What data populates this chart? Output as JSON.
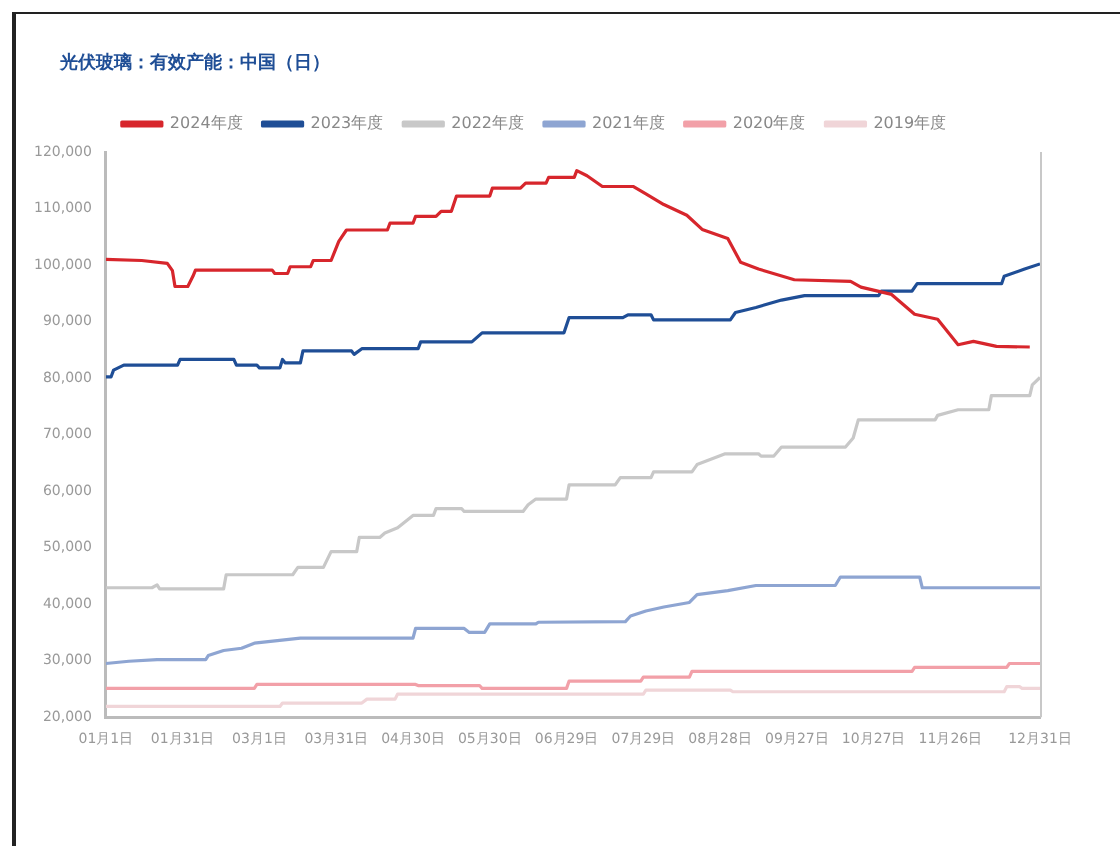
{
  "chart_data": {
    "type": "line",
    "title": "光伏玻璃：有效产能：中国（日）",
    "legend": "top",
    "xlim": [
      "--01-01",
      "--12-31"
    ],
    "xticks": [
      {
        "value": "--01-01",
        "label": "01月1日"
      },
      {
        "value": "--01-31",
        "label": "01月31日"
      },
      {
        "value": "--03-01",
        "label": "03月1日"
      },
      {
        "value": "--03-31",
        "label": "03月31日"
      },
      {
        "value": "--04-30",
        "label": "04月30日"
      },
      {
        "value": "--05-30",
        "label": "05月30日"
      },
      {
        "value": "--06-29",
        "label": "06月29日"
      },
      {
        "value": "--07-29",
        "label": "07月29日"
      },
      {
        "value": "--08-28",
        "label": "08月28日"
      },
      {
        "value": "--09-27",
        "label": "09月27日"
      },
      {
        "value": "--10-27",
        "label": "10月27日"
      },
      {
        "value": "--11-26",
        "label": "11月26日"
      },
      {
        "value": "--12-31",
        "label": "12月31日"
      }
    ],
    "ylim": [
      20000,
      120000
    ],
    "yticks": [
      {
        "value": 20000,
        "label": "20,000"
      },
      {
        "value": 30000,
        "label": "30,000"
      },
      {
        "value": 40000,
        "label": "40,000"
      },
      {
        "value": 50000,
        "label": "50,000"
      },
      {
        "value": 60000,
        "label": "60,000"
      },
      {
        "value": 70000,
        "label": "70,000"
      },
      {
        "value": 80000,
        "label": "80,000"
      },
      {
        "value": 90000,
        "label": "90,000"
      },
      {
        "value": 100000,
        "label": "100,000"
      },
      {
        "value": 110000,
        "label": "110,000"
      },
      {
        "value": 120000,
        "label": "120,000"
      }
    ],
    "series": [
      {
        "name": "2024年度",
        "color": "#d7262c",
        "x": [
          "--01-01",
          "--01-15",
          "--01-25",
          "--01-27",
          "--01-28",
          "--02-02",
          "--02-04",
          "--02-05",
          "--03-06",
          "--03-07",
          "--03-12",
          "--03-13",
          "--03-21",
          "--03-22",
          "--03-29",
          "--04-01",
          "--04-04",
          "--04-20",
          "--04-21",
          "--04-30",
          "--05-01",
          "--05-09",
          "--05-11",
          "--05-15",
          "--05-17",
          "--05-30",
          "--05-31",
          "--06-11",
          "--06-13",
          "--06-21",
          "--06-22",
          "--07-02",
          "--07-03",
          "--07-07",
          "--07-13",
          "--07-25",
          "--07-30",
          "--08-06",
          "--08-15",
          "--08-21",
          "--08-31",
          "--09-05",
          "--09-12",
          "--09-26",
          "--10-18",
          "--10-22",
          "--11-03",
          "--11-12",
          "--11-21",
          "--11-29",
          "--12-05",
          "--12-14",
          "--12-27"
        ],
        "values": [
          101000,
          100800,
          100300,
          99000,
          96200,
          96200,
          98000,
          99100,
          99100,
          98500,
          98500,
          99700,
          99700,
          100800,
          100800,
          104200,
          106200,
          106200,
          107400,
          107400,
          108600,
          108600,
          109500,
          109500,
          112200,
          112200,
          113600,
          113600,
          114500,
          114500,
          115500,
          115500,
          116700,
          115800,
          113900,
          113900,
          112600,
          110700,
          108800,
          106300,
          104700,
          100500,
          99300,
          97400,
          97100,
          96100,
          94800,
          91300,
          90400,
          85900,
          86500,
          85600,
          85500
        ]
      },
      {
        "name": "2023年度",
        "color": "#1f4e96",
        "x": [
          "--01-01",
          "--01-03",
          "--01-04",
          "--01-08",
          "--01-29",
          "--01-30",
          "--02-20",
          "--02-21",
          "--02-29",
          "--03-01",
          "--03-09",
          "--03-10",
          "--03-11",
          "--03-17",
          "--03-18",
          "--04-06",
          "--04-07",
          "--04-10",
          "--05-02",
          "--05-03",
          "--05-23",
          "--05-27",
          "--06-28",
          "--06-30",
          "--07-21",
          "--07-23",
          "--08-01",
          "--08-02",
          "--09-01",
          "--09-03",
          "--09-11",
          "--09-21",
          "--09-30",
          "--10-29",
          "--10-30",
          "--11-11",
          "--11-13",
          "--12-16",
          "--12-17",
          "--12-25",
          "--12-31"
        ],
        "values": [
          80200,
          80200,
          81400,
          82300,
          82300,
          83300,
          83300,
          82300,
          82300,
          81800,
          81800,
          83300,
          82700,
          82700,
          84800,
          84800,
          84200,
          85200,
          85200,
          86400,
          86400,
          88000,
          88000,
          90700,
          90700,
          91200,
          91200,
          90300,
          90300,
          91600,
          92500,
          93800,
          94600,
          94600,
          95400,
          95400,
          96700,
          96700,
          98000,
          99300,
          100200
        ]
      },
      {
        "name": "2022年度",
        "color": "#c8c8c8",
        "x": [
          "--01-01",
          "--01-19",
          "--01-21",
          "--01-22",
          "--02-16",
          "--02-17",
          "--03-14",
          "--03-16",
          "--03-26",
          "--03-29",
          "--04-08",
          "--04-09",
          "--04-17",
          "--04-19",
          "--04-24",
          "--04-30",
          "--05-08",
          "--05-09",
          "--05-19",
          "--05-20",
          "--06-12",
          "--06-14",
          "--06-17",
          "--06-29",
          "--06-30",
          "--07-18",
          "--07-20",
          "--08-01",
          "--08-02",
          "--08-17",
          "--08-19",
          "--08-30",
          "--09-12",
          "--09-13",
          "--09-18",
          "--09-21",
          "--10-16",
          "--10-19",
          "--10-21",
          "--11-20",
          "--11-21",
          "--11-29",
          "--12-11",
          "--12-12",
          "--12-27",
          "--12-28",
          "--12-31"
        ],
        "values": [
          42900,
          42900,
          43400,
          42700,
          42700,
          45200,
          45200,
          46500,
          46500,
          49300,
          49300,
          51800,
          51800,
          52600,
          53500,
          55700,
          55700,
          56900,
          56900,
          56400,
          56400,
          57600,
          58600,
          58600,
          61100,
          61100,
          62400,
          62400,
          63400,
          63400,
          64700,
          66600,
          66600,
          66200,
          66200,
          67800,
          67800,
          69400,
          72600,
          72600,
          73400,
          74400,
          74400,
          76900,
          76900,
          78800,
          80100
        ]
      },
      {
        "name": "2021年度",
        "color": "#8ea5d2",
        "x": [
          "--01-01",
          "--01-10",
          "--01-21",
          "--02-09",
          "--02-10",
          "--02-16",
          "--02-23",
          "--02-28",
          "--03-17",
          "--04-30",
          "--05-01",
          "--05-20",
          "--05-22",
          "--05-28",
          "--05-30",
          "--06-17",
          "--06-18",
          "--07-22",
          "--07-24",
          "--07-30",
          "--08-06",
          "--08-16",
          "--08-19",
          "--08-31",
          "--09-11",
          "--10-12",
          "--10-14",
          "--11-14",
          "--11-15",
          "--12-31"
        ],
        "values": [
          29500,
          29900,
          30200,
          30200,
          30900,
          31800,
          32200,
          33100,
          34000,
          34000,
          35700,
          35700,
          35000,
          35000,
          36500,
          36500,
          36800,
          36900,
          37900,
          38800,
          39500,
          40300,
          41700,
          42400,
          43300,
          43300,
          44800,
          44800,
          42900,
          42900
        ]
      },
      {
        "name": "2020年度",
        "color": "#f2a0a8",
        "x": [
          "--01-01",
          "--02-28",
          "--02-29",
          "--05-01",
          "--05-02",
          "--05-26",
          "--05-27",
          "--06-29",
          "--06-30",
          "--07-28",
          "--07-29",
          "--08-16",
          "--08-17",
          "--11-11",
          "--11-12",
          "--12-18",
          "--12-19",
          "--12-31"
        ],
        "values": [
          25100,
          25100,
          25800,
          25800,
          25600,
          25600,
          25100,
          25100,
          26400,
          26400,
          27100,
          27100,
          28100,
          28100,
          28800,
          28800,
          29500,
          29500
        ]
      },
      {
        "name": "2019年度",
        "color": "#f0d5d8",
        "x": [
          "--01-01",
          "--03-09",
          "--03-10",
          "--04-10",
          "--04-12",
          "--04-23",
          "--04-24",
          "--07-29",
          "--07-30",
          "--09-01",
          "--09-02",
          "--12-17",
          "--12-18",
          "--12-23",
          "--12-24",
          "--12-31"
        ],
        "values": [
          21900,
          21900,
          22500,
          22500,
          23200,
          23200,
          24100,
          24100,
          24800,
          24800,
          24500,
          24500,
          25400,
          25400,
          25100,
          25100
        ]
      }
    ]
  }
}
